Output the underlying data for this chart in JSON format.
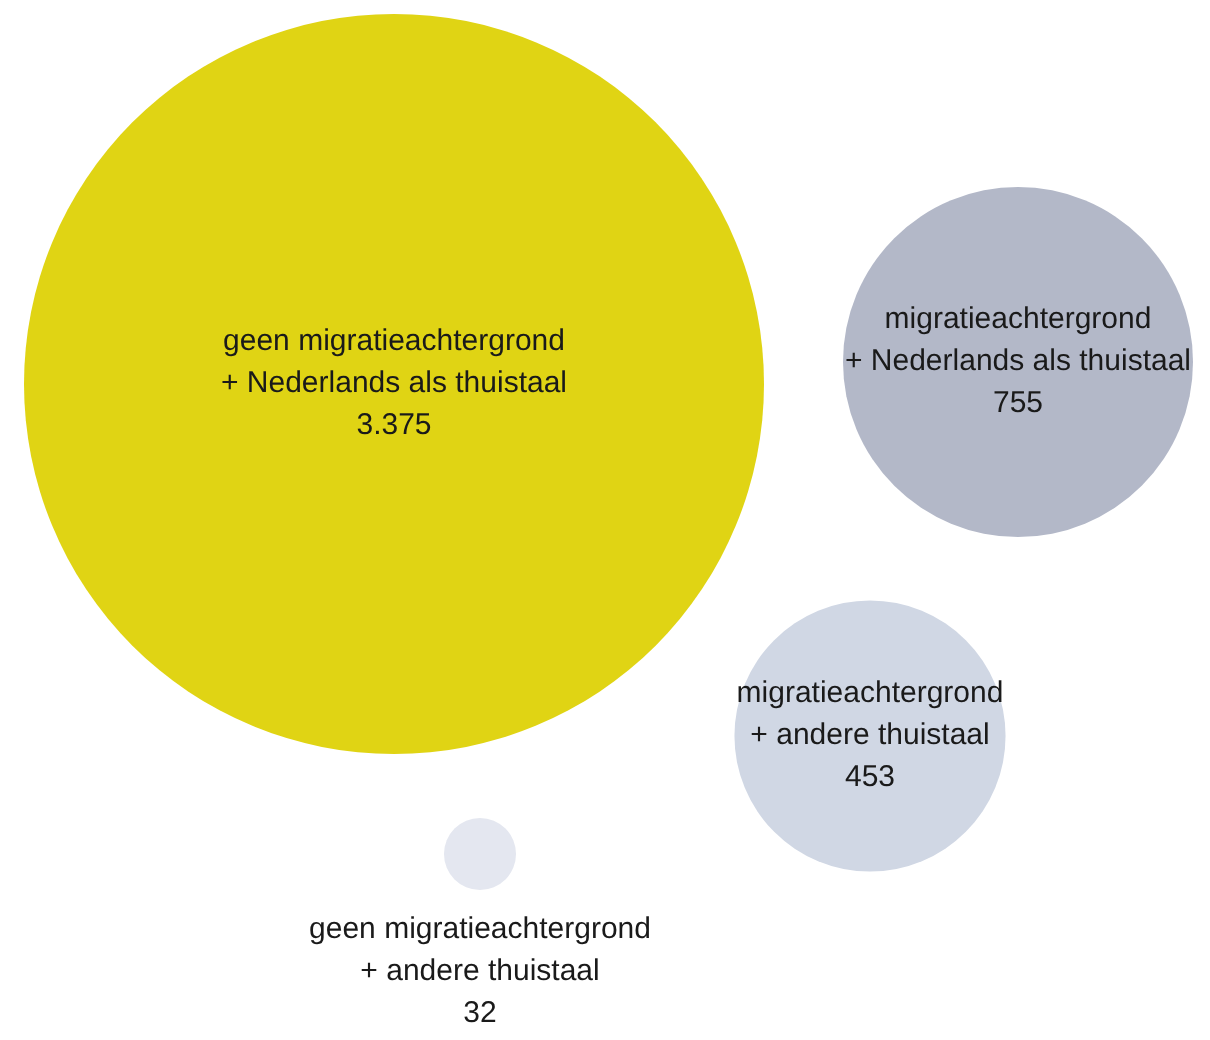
{
  "chart_data": {
    "type": "other",
    "categories": [
      "geen migratieachtergrond\n+ Nederlands als thuistaal",
      "migratieachtergrond\n+ Nederlands als thuistaal",
      "migratieachtergrond\n+ andere thuistaal",
      "geen migratieachtergrond\n+ andere thuistaal"
    ],
    "values": [
      3375,
      755,
      453,
      32
    ],
    "colors": [
      "#e0d414",
      "#b3b8c8",
      "#d0d7e4",
      "#e4e7f0"
    ],
    "value_labels": [
      "3.375",
      "755",
      "453",
      "32"
    ]
  }
}
